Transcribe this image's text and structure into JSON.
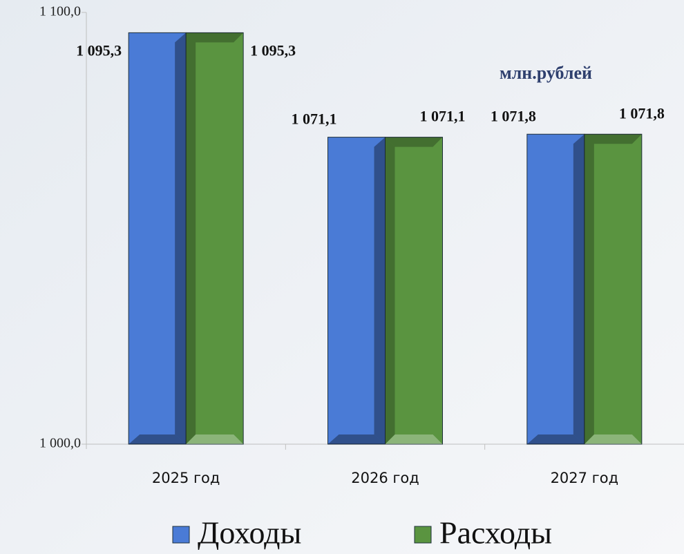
{
  "chart_data": {
    "type": "bar",
    "annotation": "млн.рублей",
    "categories": [
      "2025 год",
      "2026 год",
      "2027 год"
    ],
    "series": [
      {
        "name": "Доходы",
        "color": "#4a7bd6",
        "values": [
          1095.3,
          1071.1,
          1071.8
        ],
        "value_labels": [
          "1 095,3",
          "1 071,1",
          "1 071,8"
        ]
      },
      {
        "name": "Расходы",
        "color": "#5a9440",
        "values": [
          1095.3,
          1071.1,
          1071.8
        ],
        "value_labels": [
          "1 095,3",
          "1 071,1",
          "1 071,8"
        ]
      }
    ],
    "ylim": [
      1000,
      1100
    ],
    "yticks": [
      {
        "value": 1000,
        "label": "1 000,0"
      },
      {
        "value": 1100,
        "label": "1 100,0"
      }
    ],
    "grid": false
  }
}
